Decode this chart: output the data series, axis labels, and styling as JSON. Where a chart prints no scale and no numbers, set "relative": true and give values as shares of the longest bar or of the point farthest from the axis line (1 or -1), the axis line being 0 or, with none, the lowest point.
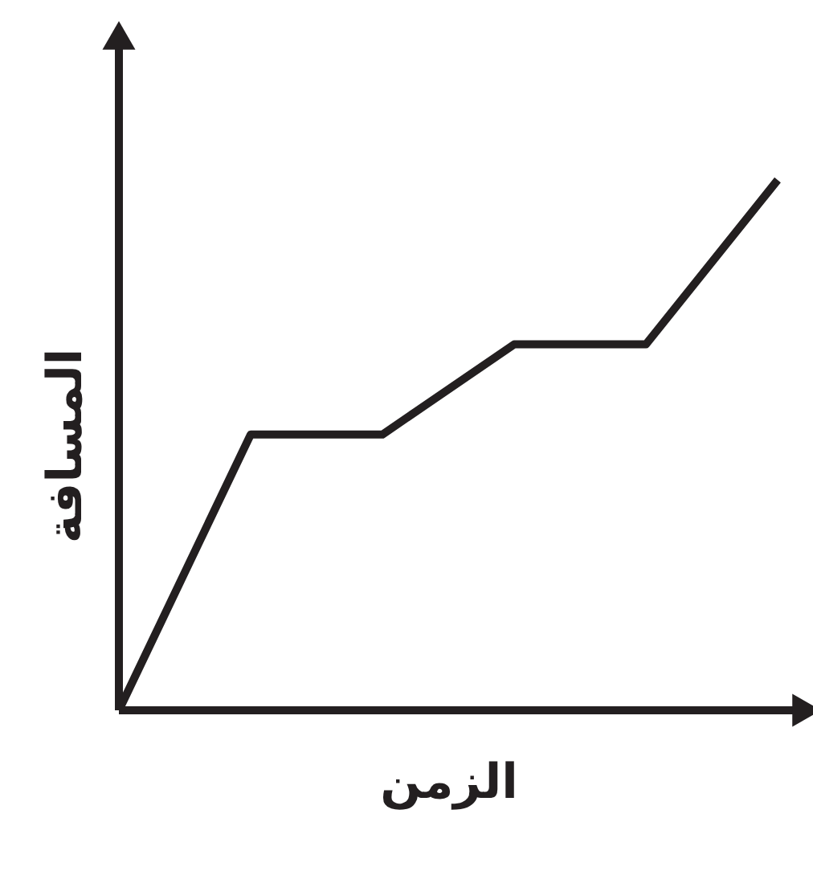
{
  "chart_data": {
    "type": "line",
    "relative": true,
    "xlabel": "الزمن",
    "ylabel": "المسافة",
    "categories": [
      null,
      null,
      null,
      null,
      null,
      null
    ],
    "tick_labels": false,
    "marker": "none",
    "line_style": "solid",
    "series": [
      {
        "color": "#231f20",
        "values": [
          0,
          0.52,
          0.52,
          0.69,
          0.69,
          1
        ]
      }
    ]
  }
}
